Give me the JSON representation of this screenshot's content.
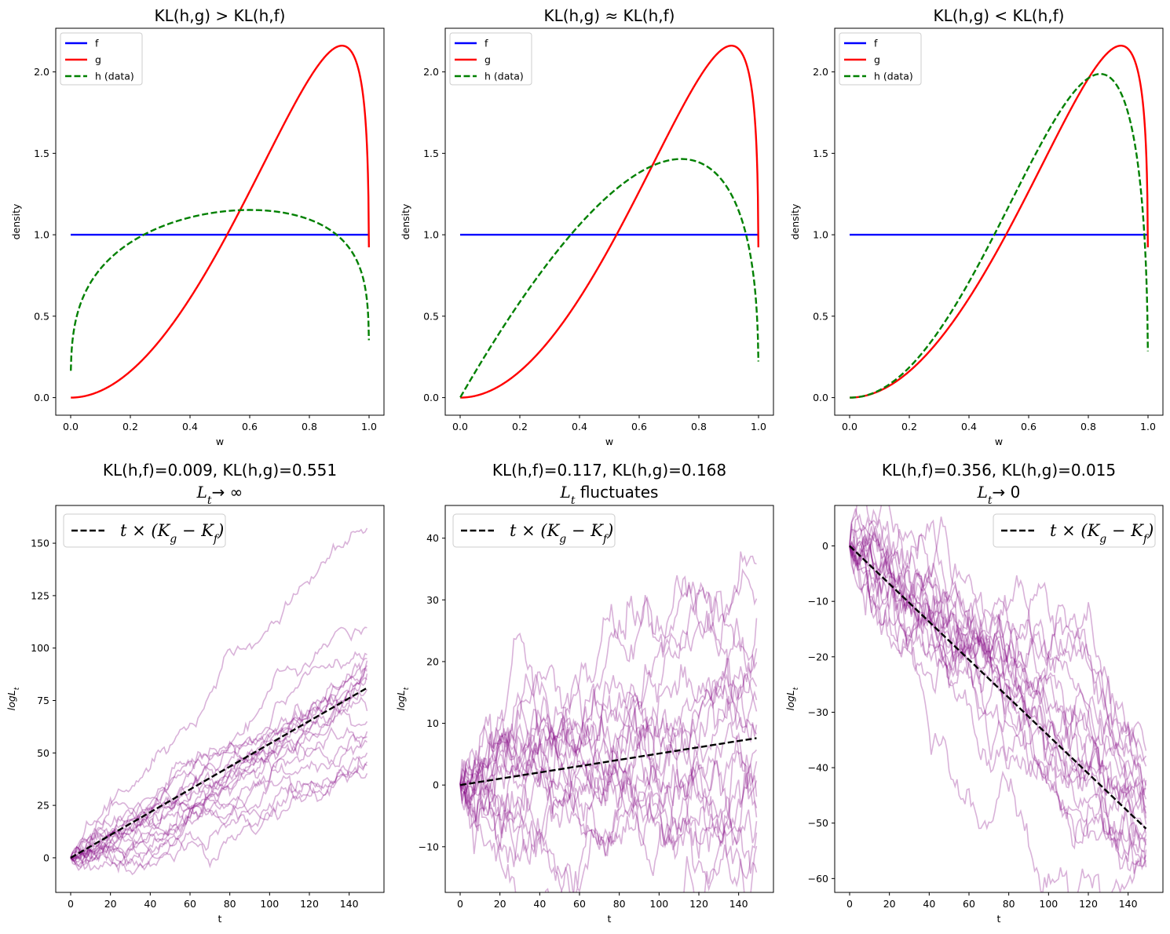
{
  "chart_data": [
    {
      "type": "line",
      "title": "KL(h,g) > KL(h,f)",
      "xlabel": "w",
      "ylabel": "density",
      "xlim": [
        -0.05,
        1.05
      ],
      "ylim": [
        -0.108,
        2.268
      ],
      "xticks": [
        "0.0",
        "0.2",
        "0.4",
        "0.6",
        "0.8",
        "1.0"
      ],
      "yticks": [
        "0.0",
        "0.5",
        "1.0",
        "1.5",
        "2.0"
      ],
      "legend": [
        "f",
        "g",
        "h (data)"
      ],
      "series": [
        {
          "name": "f",
          "color": "#0000ff",
          "dash": "solid",
          "kind": "uniform"
        },
        {
          "name": "g",
          "color": "#ff0000",
          "dash": "solid",
          "kind": "beta",
          "a": 3,
          "b": 1.2
        },
        {
          "name": "h (data)",
          "color": "#008000",
          "dash": "dashed",
          "kind": "beta",
          "a": 1.3,
          "b": 1.2
        }
      ]
    },
    {
      "type": "line",
      "title": "KL(h,g) ≈ KL(h,f)",
      "xlabel": "w",
      "ylabel": "density",
      "xlim": [
        -0.05,
        1.05
      ],
      "ylim": [
        -0.108,
        2.268
      ],
      "xticks": [
        "0.0",
        "0.2",
        "0.4",
        "0.6",
        "0.8",
        "1.0"
      ],
      "yticks": [
        "0.0",
        "0.5",
        "1.0",
        "1.5",
        "2.0"
      ],
      "legend": [
        "f",
        "g",
        "h (data)"
      ],
      "series": [
        {
          "name": "f",
          "color": "#0000ff",
          "dash": "solid",
          "kind": "uniform"
        },
        {
          "name": "g",
          "color": "#ff0000",
          "dash": "solid",
          "kind": "beta",
          "a": 3,
          "b": 1.2
        },
        {
          "name": "h (data)",
          "color": "#008000",
          "dash": "dashed",
          "kind": "beta",
          "a": 2,
          "b": 1.35
        }
      ]
    },
    {
      "type": "line",
      "title": "KL(h,g) < KL(h,f)",
      "xlabel": "w",
      "ylabel": "density",
      "xlim": [
        -0.05,
        1.05
      ],
      "ylim": [
        -0.108,
        2.268
      ],
      "xticks": [
        "0.0",
        "0.2",
        "0.4",
        "0.6",
        "0.8",
        "1.0"
      ],
      "yticks": [
        "0.0",
        "0.5",
        "1.0",
        "1.5",
        "2.0"
      ],
      "legend": [
        "f",
        "g",
        "h (data)"
      ],
      "series": [
        {
          "name": "f",
          "color": "#0000ff",
          "dash": "solid",
          "kind": "uniform"
        },
        {
          "name": "g",
          "color": "#ff0000",
          "dash": "solid",
          "kind": "beta",
          "a": 3,
          "b": 1.2
        },
        {
          "name": "h (data)",
          "color": "#008000",
          "dash": "dashed",
          "kind": "beta",
          "a": 3.1,
          "b": 1.4
        }
      ]
    },
    {
      "type": "line",
      "title": "KL(h,f)=0.009, KL(h,g)=0.551",
      "subtitle_var": "L",
      "subtitle_sub": "t",
      "subtitle_rest": "→ ∞",
      "xlabel": "t",
      "ylabel": "logL",
      "ylabel_sub": "t",
      "xlim": [
        -7.5,
        157.5
      ],
      "ylim": [
        -16.5,
        168
      ],
      "xticks": [
        "0",
        "20",
        "40",
        "60",
        "80",
        "100",
        "120",
        "140"
      ],
      "yticks": [
        "0",
        "25",
        "50",
        "75",
        "100",
        "125",
        "150"
      ],
      "legend_label": "t × (K",
      "legend_sub_g": "g",
      "legend_mid": " − K",
      "legend_sub_f": "f",
      "legend_end": ")",
      "legend_loc": "upper left",
      "n_paths": 20,
      "path_color": "#800080",
      "path_alpha": 0.3,
      "t_max": 149,
      "drift": 0.542,
      "path_end_values": [
        157,
        110,
        97,
        95,
        94,
        92,
        90,
        89,
        88,
        85,
        80,
        70,
        65,
        60,
        58,
        55,
        50,
        46,
        44,
        40
      ],
      "trend": {
        "x": [
          0,
          149
        ],
        "y": [
          0,
          81
        ],
        "color": "#000000",
        "dash": "dashed"
      }
    },
    {
      "type": "line",
      "title": "KL(h,f)=0.117, KL(h,g)=0.168",
      "subtitle_var": "L",
      "subtitle_sub": "t",
      "subtitle_rest": " fluctuates",
      "xlabel": "t",
      "ylabel": "logL",
      "ylabel_sub": "t",
      "xlim": [
        -7.5,
        157.5
      ],
      "ylim": [
        -17.4,
        45.3
      ],
      "xticks": [
        "0",
        "20",
        "40",
        "60",
        "80",
        "100",
        "120",
        "140"
      ],
      "yticks": [
        "−10",
        "0",
        "10",
        "20",
        "30",
        "40"
      ],
      "legend_label": "t × (K",
      "legend_sub_g": "g",
      "legend_mid": " − K",
      "legend_sub_f": "f",
      "legend_end": ")",
      "legend_loc": "upper left",
      "n_paths": 20,
      "path_color": "#800080",
      "path_alpha": 0.3,
      "t_max": 149,
      "drift": 0.051,
      "path_end_values": [
        36,
        30,
        27,
        22,
        20,
        16,
        14,
        12,
        10,
        8,
        6,
        4,
        1,
        -2,
        -4,
        -5,
        -6,
        -8,
        -10,
        -14
      ],
      "trend": {
        "x": [
          0,
          149
        ],
        "y": [
          0,
          7.6
        ],
        "color": "#000000",
        "dash": "dashed"
      }
    },
    {
      "type": "line",
      "title": "KL(h,f)=0.356, KL(h,g)=0.015",
      "subtitle_var": "L",
      "subtitle_sub": "t",
      "subtitle_rest": "→ 0",
      "xlabel": "t",
      "ylabel": "logL",
      "ylabel_sub": "t",
      "xlim": [
        -7.5,
        157.5
      ],
      "ylim": [
        -62.5,
        7.3
      ],
      "xticks": [
        "0",
        "20",
        "40",
        "60",
        "80",
        "100",
        "120",
        "140"
      ],
      "yticks": [
        "0",
        "−10",
        "−20",
        "−30",
        "−40",
        "−50",
        "−60"
      ],
      "legend_label": "t × (K",
      "legend_sub_g": "g",
      "legend_mid": " − K",
      "legend_sub_f": "f",
      "legend_end": ")",
      "legend_loc": "upper right",
      "n_paths": 20,
      "path_color": "#800080",
      "path_alpha": 0.3,
      "t_max": 149,
      "drift": -0.341,
      "path_end_values": [
        -37,
        -38,
        -40,
        -42,
        -43,
        -44,
        -46,
        -47,
        -48,
        -49,
        -50,
        -51,
        -52,
        -52,
        -53,
        -54,
        -55,
        -56,
        -57,
        -58
      ],
      "trend": {
        "x": [
          0,
          149
        ],
        "y": [
          0,
          -51
        ],
        "color": "#000000",
        "dash": "dashed"
      }
    }
  ]
}
